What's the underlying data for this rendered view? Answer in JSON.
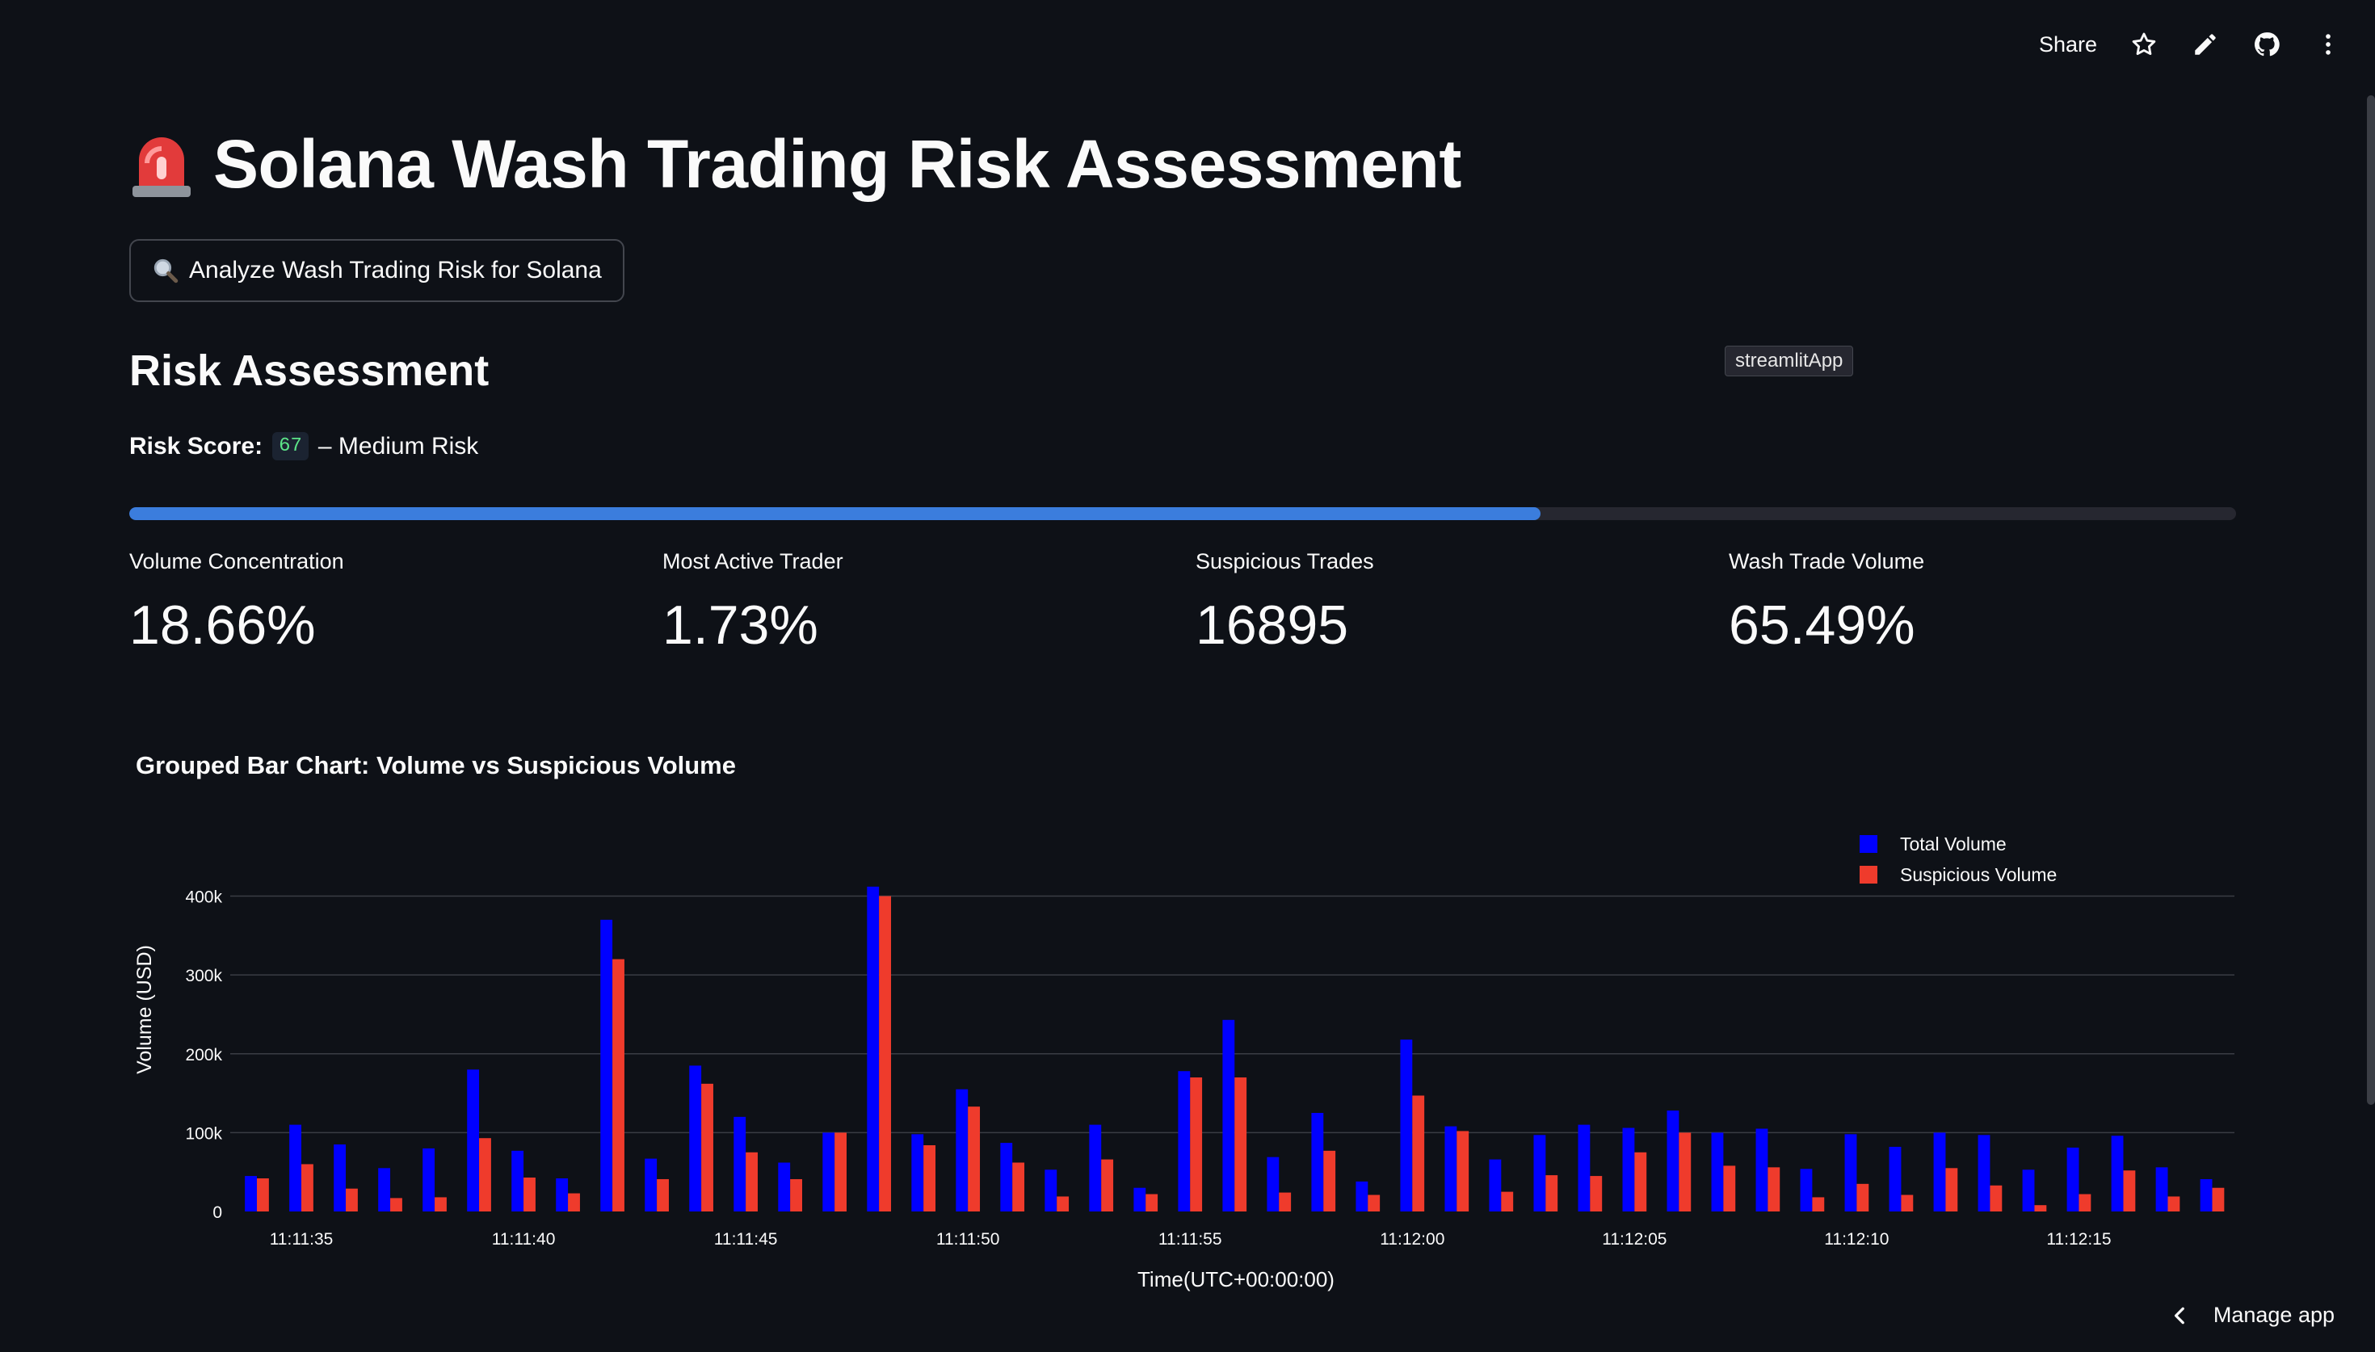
{
  "toolbar": {
    "share_label": "Share",
    "icons": [
      "star-icon",
      "edit-pencil-icon",
      "github-icon",
      "more-vertical-icon"
    ]
  },
  "page": {
    "title": "Solana Wash Trading Risk Assessment",
    "title_icon": "siren-emoji"
  },
  "analyze_button": {
    "label": "Analyze Wash Trading Risk for Solana",
    "icon": "magnifier-icon"
  },
  "risk": {
    "heading": "Risk Assessment",
    "tooltip": "streamlitApp",
    "score_label": "Risk Score:",
    "score_value": "67",
    "level_text": "– Medium Risk",
    "progress": 0.67,
    "progress_color": "#3b7ddd"
  },
  "metrics": [
    {
      "label": "Volume Concentration",
      "value": "18.66%"
    },
    {
      "label": "Most Active Trader",
      "value": "1.73%"
    },
    {
      "label": "Suspicious Trades",
      "value": "16895"
    },
    {
      "label": "Wash Trade Volume",
      "value": "65.49%"
    }
  ],
  "chart_data": {
    "type": "bar",
    "title": "Grouped Bar Chart: Volume vs Suspicious Volume",
    "xlabel": "Time(UTC+00:00:00)",
    "ylabel": "Volume (USD)",
    "x_start": "11:11:34",
    "x_step_seconds": 1,
    "x_ticks": [
      "11:11:35",
      "11:11:40",
      "11:11:45",
      "11:11:50",
      "11:11:55",
      "11:12:00",
      "11:12:05",
      "11:12:10",
      "11:12:15"
    ],
    "y_ticks": [
      "0",
      "100k",
      "200k",
      "300k",
      "400k"
    ],
    "ylim": [
      0,
      420000
    ],
    "grid": true,
    "legend_position": "top-right",
    "series": [
      {
        "name": "Total Volume",
        "color": "#0000ff",
        "values": [
          45000,
          110000,
          85000,
          55000,
          80000,
          180000,
          77000,
          42000,
          370000,
          67000,
          185000,
          120000,
          62000,
          100000,
          412000,
          98000,
          155000,
          87000,
          53000,
          110000,
          30000,
          178000,
          243000,
          69000,
          125000,
          38000,
          218000,
          108000,
          66000,
          97000,
          110000,
          106000,
          128000,
          100000,
          105000,
          54000,
          98000,
          82000,
          100000,
          97000,
          53000,
          81000,
          96000,
          56000,
          41000
        ]
      },
      {
        "name": "Suspicious Volume",
        "color": "#ef3b2c",
        "values": [
          42000,
          60000,
          29000,
          17000,
          18000,
          93000,
          43000,
          23000,
          320000,
          41000,
          162000,
          75000,
          41000,
          100000,
          400000,
          84000,
          133000,
          62000,
          19000,
          66000,
          22000,
          170000,
          170000,
          24000,
          77000,
          21000,
          147000,
          102000,
          25000,
          46000,
          45000,
          75000,
          100000,
          58000,
          56000,
          18000,
          35000,
          21000,
          55000,
          33000,
          8000,
          22000,
          52000,
          19000,
          30000
        ]
      }
    ]
  },
  "footer": {
    "manage_label": "Manage app"
  }
}
